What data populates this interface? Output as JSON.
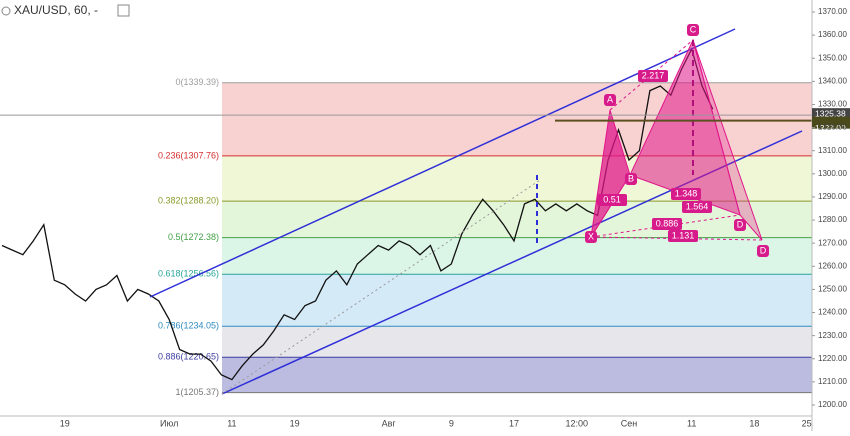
{
  "chart_data": {
    "type": "line",
    "title": "XAU/USD, 60, -",
    "color": "#111111",
    "categories": [
      null,
      null,
      null,
      null,
      null,
      null,
      "19",
      null,
      null,
      null,
      null,
      null,
      null,
      null,
      null,
      null,
      "Июл",
      null,
      null,
      null,
      null,
      null,
      "11",
      null,
      null,
      null,
      null,
      null,
      "19",
      null,
      null,
      null,
      null,
      null,
      null,
      null,
      null,
      "Авг",
      null,
      null,
      null,
      null,
      null,
      "9",
      null,
      null,
      null,
      null,
      null,
      "17",
      null,
      null,
      null,
      null,
      null,
      "12:00",
      null,
      null,
      null,
      null,
      "Сен",
      null,
      null,
      null,
      null,
      null,
      "11",
      null,
      null,
      null,
      null,
      null,
      "18",
      null,
      null,
      null,
      null,
      "25"
    ],
    "values": [
      1269,
      1267,
      1265,
      1271,
      1278,
      1254,
      1252,
      1248,
      1245,
      1250,
      1252,
      1256,
      1245,
      1250,
      1248,
      1245,
      1237,
      1224,
      1222,
      1222,
      1219,
      1213,
      1211,
      1217,
      1222,
      1226,
      1232,
      1239,
      1237,
      1243,
      1245,
      1254,
      1258,
      1252,
      1261,
      1265,
      1269,
      1267,
      1271,
      1269,
      1265,
      1269,
      1258,
      1261,
      1274,
      1282,
      1289,
      1284,
      1278,
      1271,
      1287,
      1289,
      1284,
      1287,
      1284,
      1287,
      1284,
      1282,
      1306,
      1319,
      1306,
      1310,
      1336,
      1338,
      1334,
      1345,
      1354,
      1338,
      1328,
      null,
      null,
      null,
      null,
      null,
      null,
      null,
      null,
      null
    ],
    "ylim": [
      1198,
      1375
    ],
    "yticks": [
      {
        "value": 1200,
        "label": "1200.00"
      },
      {
        "value": 1210,
        "label": "1210.00"
      },
      {
        "value": 1220,
        "label": "1220.00"
      },
      {
        "value": 1230,
        "label": "1230.00"
      },
      {
        "value": 1240,
        "label": "1240.00"
      },
      {
        "value": 1250,
        "label": "1250.00"
      },
      {
        "value": 1260,
        "label": "1260.00"
      },
      {
        "value": 1270,
        "label": "1270.00"
      },
      {
        "value": 1280,
        "label": "1280.00"
      },
      {
        "value": 1290,
        "label": "1290.00"
      },
      {
        "value": 1300,
        "label": "1300.00"
      },
      {
        "value": 1310,
        "label": "1310.00"
      },
      {
        "value": 1320,
        "label": "1320.00"
      },
      {
        "value": 1330,
        "label": "1330.00"
      },
      {
        "value": 1340,
        "label": "1340.00"
      },
      {
        "value": 1350,
        "label": "1350.00"
      },
      {
        "value": 1360,
        "label": "1360.00"
      },
      {
        "value": 1370,
        "label": "1370.00"
      }
    ],
    "fib_levels": [
      {
        "value": 1339.39,
        "label": "0(1339.39)",
        "color": "#9e9e9e",
        "band": "rgba(239,154,154,0.45)"
      },
      {
        "value": 1307.76,
        "label": "0.236(1307.76)",
        "color": "#d32f2f",
        "band": "rgba(226,240,180,0.55)"
      },
      {
        "value": 1288.2,
        "label": "0.382(1288.20)",
        "color": "#8a9a2a",
        "band": "rgba(205,238,185,0.55)"
      },
      {
        "value": 1272.38,
        "label": "0.5(1272.38)",
        "color": "#43a047",
        "band": "rgba(190,236,210,0.55)"
      },
      {
        "value": 1256.56,
        "label": "0.618(1256.56)",
        "color": "#26a69a",
        "band": "rgba(190,222,242,0.65)"
      },
      {
        "value": 1234.05,
        "label": "0.786(1234.05)",
        "color": "#2e8bc0",
        "band": "rgba(222,222,228,0.75)"
      },
      {
        "value": 1220.65,
        "label": "0.886(1220.65)",
        "color": "#3f3fa0",
        "band": "rgba(165,165,215,0.75)"
      },
      {
        "value": 1205.37,
        "label": "1(1205.37)",
        "color": "#777777",
        "band": null
      }
    ],
    "price_labels": [
      1325.38,
      {
        "value": 1323,
        "label": "1323.00"
      }
    ],
    "pattern_points": [
      "X",
      "A",
      "B",
      "C",
      "D",
      "D"
    ],
    "pattern_ratios": [
      "0.51",
      "2.217",
      "1.348",
      "1.564",
      "0.886",
      "1.131"
    ]
  }
}
